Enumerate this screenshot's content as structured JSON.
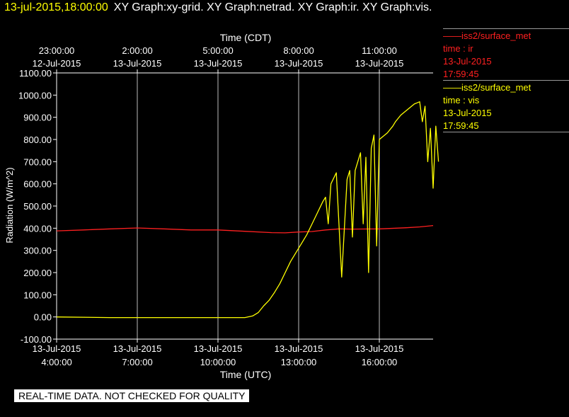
{
  "header": {
    "timestamp": "13-jul-2015,18:00:00",
    "graphs": "XY Graph:xy-grid.  XY Graph:netrad.  XY Graph:ir.  XY Graph:vis."
  },
  "legend": [
    {
      "label": "——iss2/surface_met",
      "field": "time : ir",
      "date": "13-Jul-2015",
      "time": "17:59:45",
      "color": "#ff2020"
    },
    {
      "label": "——iss2/surface_met",
      "field": "time : vis",
      "date": "13-Jul-2015",
      "time": "17:59:45",
      "color": "#ffff00"
    }
  ],
  "footer": {
    "warning": "REAL-TIME DATA. NOT CHECKED FOR QUALITY"
  },
  "chart_data": {
    "type": "line",
    "top_axis_title": "Time (CDT)",
    "xlabel": "Time (UTC)",
    "ylabel": "Radiation (W/m^2)",
    "xlim": [
      4.0,
      18.0
    ],
    "ylim": [
      -100,
      1100
    ],
    "grid": true,
    "y_ticks": [
      "-100.00",
      "0.00",
      "100.00",
      "200.00",
      "300.00",
      "400.00",
      "500.00",
      "600.00",
      "700.00",
      "800.00",
      "900.00",
      "1000.00",
      "1100.00"
    ],
    "bottom_ticks": [
      {
        "x": 4,
        "date": "13-Jul-2015",
        "time": "4:00:00"
      },
      {
        "x": 7,
        "date": "13-Jul-2015",
        "time": "7:00:00"
      },
      {
        "x": 10,
        "date": "13-Jul-2015",
        "time": "10:00:00"
      },
      {
        "x": 13,
        "date": "13-Jul-2015",
        "time": "13:00:00"
      },
      {
        "x": 16,
        "date": "13-Jul-2015",
        "time": "16:00:00"
      }
    ],
    "top_ticks": [
      {
        "x": 4,
        "time": "23:00:00",
        "date": "12-Jul-2015"
      },
      {
        "x": 7,
        "time": "2:00:00",
        "date": "13-Jul-2015"
      },
      {
        "x": 10,
        "time": "5:00:00",
        "date": "13-Jul-2015"
      },
      {
        "x": 13,
        "time": "8:00:00",
        "date": "13-Jul-2015"
      },
      {
        "x": 16,
        "time": "11:00:00",
        "date": "13-Jul-2015"
      }
    ],
    "series": [
      {
        "field": "ir",
        "color": "#ff2020",
        "x": [
          4.0,
          5.0,
          6.0,
          7.0,
          8.0,
          9.0,
          10.0,
          11.0,
          12.0,
          12.5,
          13.0,
          13.5,
          14.0,
          14.5,
          15.0,
          16.0,
          17.0,
          17.5,
          18.0
        ],
        "y": [
          388,
          392,
          397,
          401,
          397,
          392,
          392,
          386,
          380,
          379,
          383,
          385,
          392,
          397,
          396,
          397,
          402,
          406,
          412
        ]
      },
      {
        "field": "vis",
        "color": "#ffff00",
        "x": [
          4.0,
          6.0,
          8.0,
          10.0,
          11.0,
          11.3,
          11.5,
          11.7,
          11.9,
          12.1,
          12.3,
          12.5,
          12.7,
          12.9,
          13.1,
          13.3,
          13.5,
          13.7,
          13.9,
          14.0,
          14.1,
          14.2,
          14.4,
          14.6,
          14.8,
          14.9,
          15.0,
          15.1,
          15.2,
          15.3,
          15.4,
          15.5,
          15.6,
          15.7,
          15.8,
          15.9,
          16.0,
          16.1,
          16.3,
          16.5,
          16.6,
          16.8,
          17.0,
          17.2,
          17.3,
          17.4,
          17.5,
          17.6,
          17.7,
          17.8,
          17.9,
          18.0,
          18.1,
          18.2
        ],
        "y": [
          0,
          -3,
          -3,
          -3,
          -3,
          5,
          20,
          50,
          75,
          110,
          150,
          200,
          250,
          290,
          330,
          370,
          420,
          470,
          520,
          540,
          420,
          600,
          650,
          180,
          620,
          660,
          360,
          660,
          700,
          740,
          420,
          720,
          200,
          760,
          820,
          320,
          800,
          810,
          830,
          860,
          880,
          910,
          930,
          950,
          960,
          965,
          970,
          880,
          950,
          700,
          850,
          580,
          860,
          700
        ]
      }
    ]
  }
}
